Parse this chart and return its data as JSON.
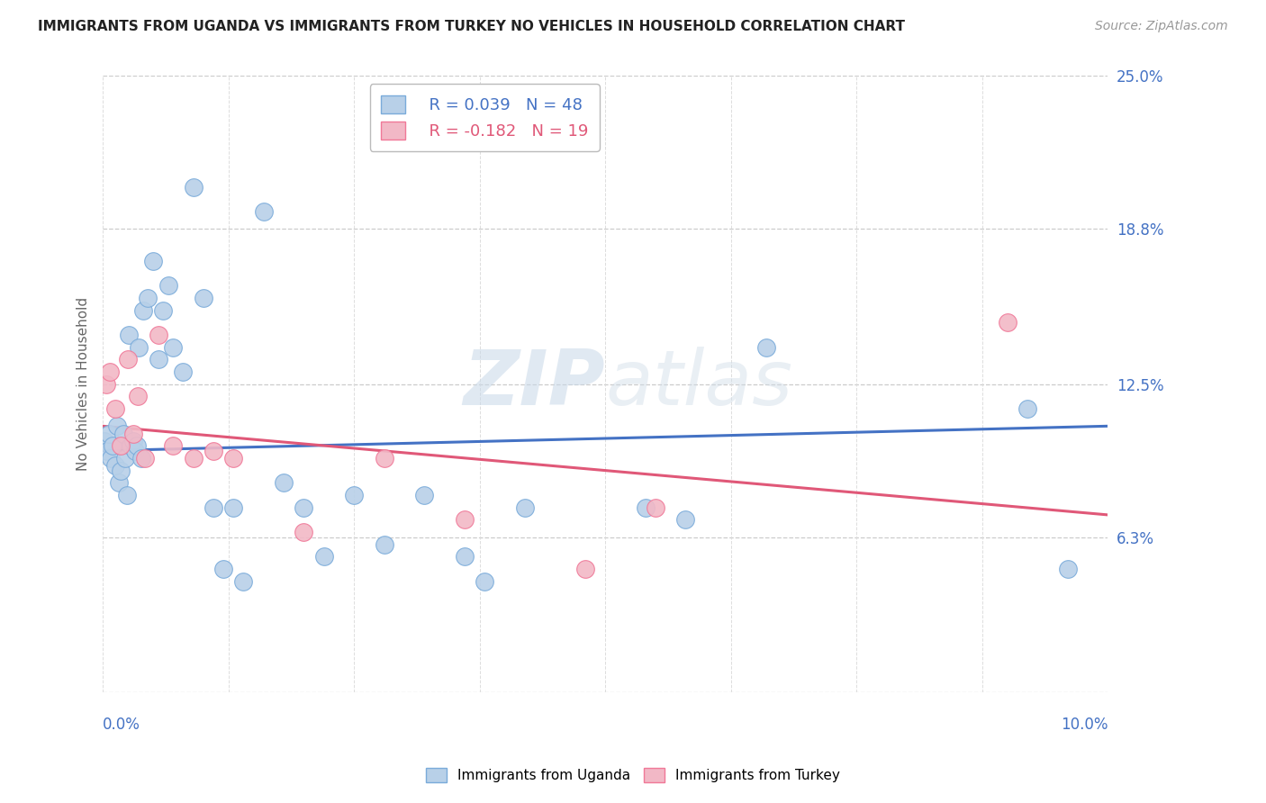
{
  "title": "IMMIGRANTS FROM UGANDA VS IMMIGRANTS FROM TURKEY NO VEHICLES IN HOUSEHOLD CORRELATION CHART",
  "source": "Source: ZipAtlas.com",
  "ylabel": "No Vehicles in Household",
  "x_min": 0.0,
  "x_max": 10.0,
  "y_min": 0.0,
  "y_max": 25.0,
  "y_ticks": [
    0.0,
    6.3,
    12.5,
    18.8,
    25.0
  ],
  "y_tick_labels": [
    "",
    "6.3%",
    "12.5%",
    "18.8%",
    "25.0%"
  ],
  "x_grid_ticks": [
    0.0,
    1.25,
    2.5,
    3.75,
    5.0,
    6.25,
    7.5,
    8.75,
    10.0
  ],
  "uganda_color": "#b8d0e8",
  "turkey_color": "#f2b8c6",
  "uganda_edge_color": "#7aabda",
  "turkey_edge_color": "#f07898",
  "uganda_line_color": "#4472c4",
  "turkey_line_color": "#e05878",
  "uganda_R": "0.039",
  "uganda_N": "48",
  "turkey_R": "-0.182",
  "turkey_N": "19",
  "legend_label_uganda": "Immigrants from Uganda",
  "legend_label_turkey": "Immigrants from Turkey",
  "watermark_zip": "ZIP",
  "watermark_atlas": "atlas",
  "uganda_x": [
    0.02,
    0.04,
    0.06,
    0.08,
    0.1,
    0.12,
    0.14,
    0.16,
    0.18,
    0.2,
    0.22,
    0.24,
    0.26,
    0.28,
    0.3,
    0.32,
    0.34,
    0.36,
    0.38,
    0.4,
    0.45,
    0.5,
    0.55,
    0.6,
    0.65,
    0.7,
    0.8,
    0.9,
    1.0,
    1.1,
    1.2,
    1.3,
    1.4,
    1.6,
    1.8,
    2.0,
    2.2,
    2.5,
    2.8,
    3.2,
    3.6,
    3.8,
    4.2,
    5.4,
    5.8,
    6.6,
    9.2,
    9.6
  ],
  "uganda_y": [
    10.2,
    9.8,
    10.5,
    9.5,
    10.0,
    9.2,
    10.8,
    8.5,
    9.0,
    10.5,
    9.5,
    8.0,
    14.5,
    10.0,
    10.2,
    9.8,
    10.0,
    14.0,
    9.5,
    15.5,
    16.0,
    17.5,
    13.5,
    15.5,
    16.5,
    14.0,
    13.0,
    20.5,
    16.0,
    7.5,
    5.0,
    7.5,
    4.5,
    19.5,
    8.5,
    7.5,
    5.5,
    8.0,
    6.0,
    8.0,
    5.5,
    4.5,
    7.5,
    7.5,
    7.0,
    14.0,
    11.5,
    5.0
  ],
  "turkey_x": [
    0.03,
    0.07,
    0.12,
    0.18,
    0.25,
    0.3,
    0.35,
    0.42,
    0.55,
    0.7,
    0.9,
    1.1,
    1.3,
    2.0,
    2.8,
    3.6,
    4.8,
    5.5,
    9.0
  ],
  "turkey_y": [
    12.5,
    13.0,
    11.5,
    10.0,
    13.5,
    10.5,
    12.0,
    9.5,
    14.5,
    10.0,
    9.5,
    9.8,
    9.5,
    6.5,
    9.5,
    7.0,
    5.0,
    7.5,
    15.0
  ],
  "uganda_trend_x0": 0.0,
  "uganda_trend_y0": 9.8,
  "uganda_trend_x1": 10.0,
  "uganda_trend_y1": 10.8,
  "turkey_trend_x0": 0.0,
  "turkey_trend_y0": 10.8,
  "turkey_trend_x1": 10.0,
  "turkey_trend_y1": 7.2
}
